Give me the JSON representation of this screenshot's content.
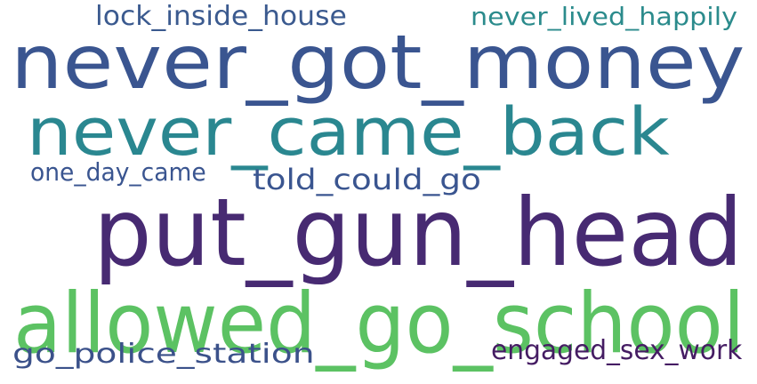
{
  "word_cloud": {
    "words": [
      {
        "text": "lock_inside_house",
        "color": "#3b5a8f"
      },
      {
        "text": "never_lived_happily",
        "color": "#2b8b8c"
      },
      {
        "text": "never_got_money",
        "color": "#3a5590"
      },
      {
        "text": "never_came_back",
        "color": "#2a8790"
      },
      {
        "text": "one_day_came",
        "color": "#3a5590"
      },
      {
        "text": "told_could_go",
        "color": "#3a5590"
      },
      {
        "text": "put_gun_head",
        "color": "#472a72"
      },
      {
        "text": "allowed_go_school",
        "color": "#5cc263"
      },
      {
        "text": "go_police_station",
        "color": "#3b518a"
      },
      {
        "text": "engaged_sex_work",
        "color": "#451c63"
      }
    ]
  }
}
